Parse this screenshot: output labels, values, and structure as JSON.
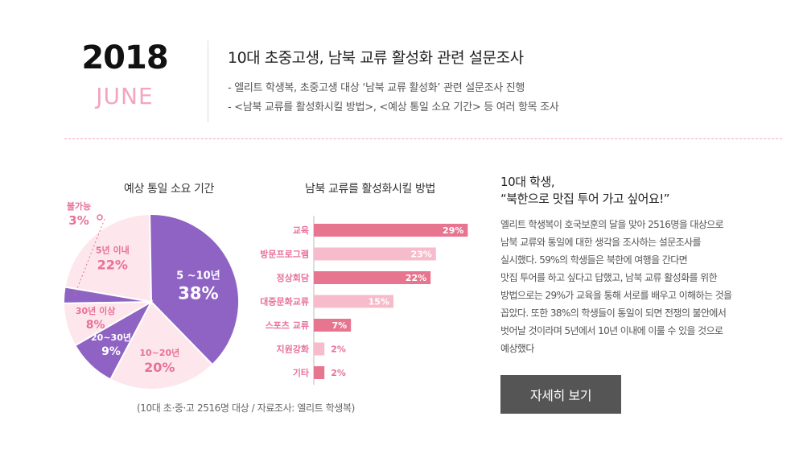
{
  "header": {
    "year": "2018",
    "month": "JUNE",
    "headline": "10대 초중고생, 남북 교류 활성화 관련 설문조사",
    "lines": [
      "엘리트 학생복, 초중고생 대상 ‘남북 교류 활성화’ 관련 설문조사 진행",
      "<남북 교류를 활성화시킬 방법>, <예상 통일 소요 기간> 등 여러 항목 조사"
    ]
  },
  "source_note": "(10대 초·중·고 2516명 대상 / 자료조사: 엘리트 학생복)",
  "side": {
    "title": "10대 학생,",
    "quote": "“북한으로 맛집 투어 가고 싶어요!”",
    "body": "엘리트 학생복이 호국보훈의 달을 맞아 2516명을 대상으로\n남북 교류와 통일에 대한 생각을 조사하는 설문조사를\n실시했다. 59%의 학생들은 북한에 여행을 간다면\n맛집 투어를 하고 싶다고 답했고, 남북 교류 활성화를 위한\n방법으로는 29%가 교육을 통해 서로를 배우고 이해하는 것을\n꼽았다. 또한 38%의 학생들이 통일이 되면 전쟁의 불안에서\n벗어날 것이라며 5년에서 10년 이내에 이룰 수 있을 것으로\n예상했다",
    "button_label": "자세히 보기"
  },
  "colors": {
    "purple": "#8f63c3",
    "pink_light": "#fde6ec",
    "pink_text": "#e9709a",
    "bar_dark": "#e8758f",
    "bar_light": "#f7bccb",
    "dash": "#f2a6bd"
  },
  "chart_data": [
    {
      "type": "pie",
      "title": "예상 통일 소요 기간",
      "categories": [
        "5년 이내",
        "5 ~10년",
        "10~20년",
        "20~30년",
        "30년 이상",
        "불가능"
      ],
      "values": [
        22,
        38,
        20,
        9,
        8,
        3
      ],
      "value_labels": [
        "22%",
        "38%",
        "20%",
        "9%",
        "8%",
        "3%"
      ],
      "slice_colors": [
        "#fde6ec",
        "#8f63c3",
        "#fde6ec",
        "#8f63c3",
        "#fde6ec",
        "#8f63c3"
      ],
      "legend": "none"
    },
    {
      "type": "bar",
      "orientation": "horizontal",
      "title": "남북 교류를 활성화시킬 방법",
      "categories": [
        "교육",
        "방문프로그램",
        "정상회담",
        "대중문화교류",
        "스포츠 교류",
        "지원강화",
        "기타"
      ],
      "values": [
        29,
        23,
        22,
        15,
        7,
        2,
        2
      ],
      "value_labels": [
        "29%",
        "23%",
        "22%",
        "15%",
        "7%",
        "2%",
        "2%"
      ],
      "bar_colors": [
        "#e8758f",
        "#f7bccb",
        "#e8758f",
        "#f7bccb",
        "#e8758f",
        "#f7bccb",
        "#e8758f"
      ],
      "xlim": [
        0,
        30
      ],
      "grid": false,
      "legend": "none"
    }
  ]
}
